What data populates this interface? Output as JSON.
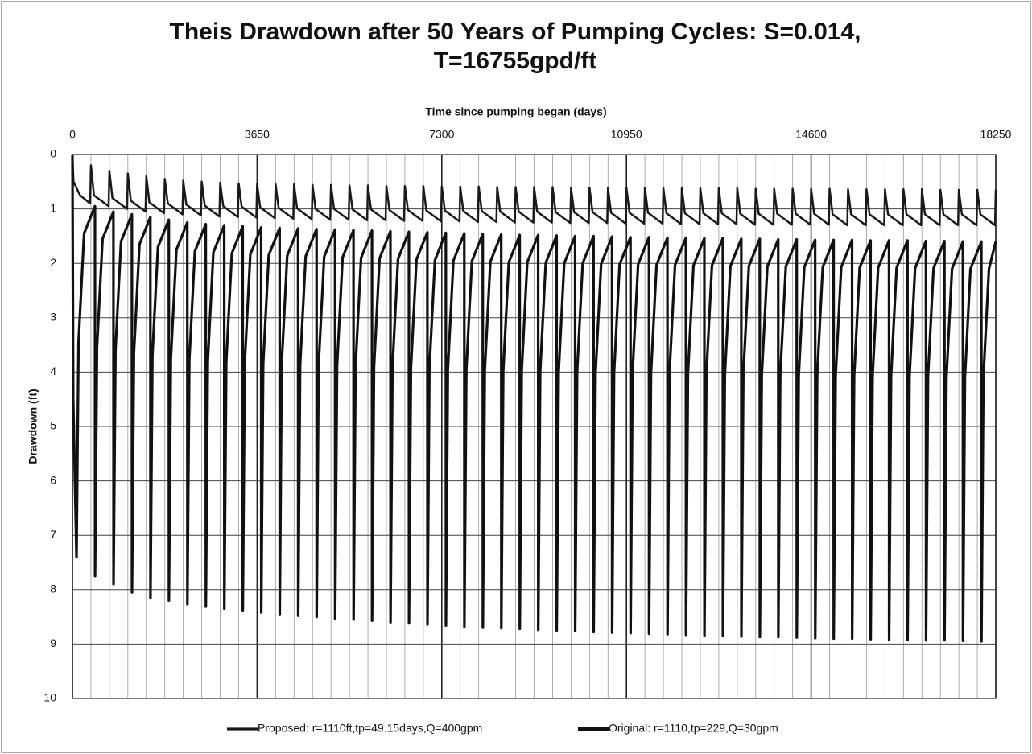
{
  "chart_data": {
    "type": "line",
    "title": "Theis Drawdown after 50 Years of Pumping Cycles: S=0.014, T=16755gpd/ft",
    "x_label": "Time since pumping began (days)",
    "y_label": "Drawdown (ft)",
    "xlim": [
      0,
      18250
    ],
    "xticks": [
      0,
      3650,
      7300,
      10950,
      14600,
      18250
    ],
    "x_minor_grid": 365,
    "x_axis_position": "top",
    "ylim": [
      0,
      10
    ],
    "yticks": [
      0,
      1,
      2,
      3,
      4,
      5,
      6,
      7,
      8,
      9,
      10
    ],
    "y_inverted": true,
    "grid": true,
    "legend": "bottom",
    "series": [
      {
        "name": "Proposed: r=1110ft,tp=49.15days,Q=400gpm",
        "color": "#1a1a1a",
        "width": 2.5,
        "x": [
          0,
          20,
          150,
          350,
          365,
          425,
          715,
          730,
          790,
          1080,
          1095,
          1155,
          1445,
          1460,
          1520,
          1810,
          1825,
          1885,
          2175,
          2190,
          2250,
          2540,
          2555,
          2615,
          2905,
          2920,
          2980,
          3270,
          3285,
          3345,
          3635,
          3650,
          3710,
          4000,
          4015,
          4075,
          4365,
          4380,
          4440,
          4730,
          4745,
          4805,
          5095,
          5110,
          5170,
          5460,
          5475,
          5535,
          5825,
          5840,
          5900,
          6190,
          6205,
          6265,
          6555,
          6570,
          6630,
          6920,
          6935,
          6995,
          7285,
          7300,
          7360,
          7650,
          7665,
          7725,
          8015,
          8030,
          8090,
          8380,
          8395,
          8455,
          8745,
          8760,
          8820,
          9110,
          9125,
          9185,
          9475,
          9490,
          9550,
          9840,
          9855,
          9915,
          10205,
          10220,
          10280,
          10570,
          10585,
          10645,
          10935,
          10950,
          11010,
          11300,
          11315,
          11375,
          11665,
          11680,
          11740,
          12030,
          12045,
          12105,
          12395,
          12410,
          12470,
          12760,
          12775,
          12835,
          13125,
          13140,
          13200,
          13490,
          13505,
          13565,
          13855,
          13870,
          13930,
          14220,
          14235,
          14295,
          14585,
          14600,
          14660,
          14950,
          14965,
          15025,
          15315,
          15330,
          15390,
          15680,
          15695,
          15755,
          16045,
          16060,
          16120,
          16410,
          16425,
          16485,
          16775,
          16790,
          16850,
          17140,
          17155,
          17215,
          17505,
          17520,
          17580,
          17870,
          17885,
          17945,
          18235,
          18250
        ],
        "values": [
          0,
          0.5,
          0.75,
          0.9,
          0.2,
          0.75,
          0.95,
          0.3,
          0.8,
          1.0,
          0.35,
          0.85,
          1.05,
          0.4,
          0.88,
          1.08,
          0.45,
          0.9,
          1.1,
          0.48,
          0.92,
          1.12,
          0.5,
          0.94,
          1.14,
          0.52,
          0.95,
          1.15,
          0.53,
          0.96,
          1.16,
          0.54,
          0.97,
          1.17,
          0.55,
          0.98,
          1.18,
          0.55,
          0.99,
          1.19,
          0.56,
          1.0,
          1.2,
          0.56,
          1.0,
          1.2,
          0.57,
          1.01,
          1.21,
          0.57,
          1.01,
          1.21,
          0.58,
          1.02,
          1.22,
          0.58,
          1.02,
          1.22,
          0.58,
          1.03,
          1.23,
          0.59,
          1.03,
          1.23,
          0.59,
          1.04,
          1.24,
          0.59,
          1.04,
          1.24,
          0.6,
          1.05,
          1.25,
          0.6,
          1.05,
          1.25,
          0.6,
          1.05,
          1.25,
          0.6,
          1.06,
          1.26,
          0.61,
          1.06,
          1.26,
          0.61,
          1.06,
          1.26,
          0.61,
          1.07,
          1.27,
          0.61,
          1.07,
          1.27,
          0.61,
          1.07,
          1.27,
          0.62,
          1.08,
          1.28,
          0.62,
          1.08,
          1.28,
          0.62,
          1.08,
          1.28,
          0.62,
          1.08,
          1.28,
          0.62,
          1.09,
          1.29,
          0.63,
          1.09,
          1.29,
          0.63,
          1.09,
          1.29,
          0.63,
          1.09,
          1.29,
          0.63,
          1.09,
          1.29,
          0.63,
          1.1,
          1.3,
          0.64,
          1.1,
          1.3,
          0.64,
          1.1,
          1.3,
          0.64,
          1.1,
          1.3,
          0.64,
          1.1,
          1.3,
          0.64,
          1.1,
          1.3,
          0.65,
          1.1,
          1.3,
          0.65,
          1.1,
          1.3,
          0.65,
          1.1,
          1.3,
          0.65
        ]
      },
      {
        "name": "Original: r=1110,tp=229,Q=30gpm",
        "color": "#111111",
        "width": 3.2,
        "x": [
          0,
          15,
          80,
          120,
          230,
          445,
          447,
          485,
          595,
          810,
          812,
          850,
          960,
          1175,
          1177,
          1215,
          1325,
          1540,
          1542,
          1580,
          1690,
          1905,
          1907,
          1945,
          2055,
          2270,
          2272,
          2310,
          2420,
          2635,
          2637,
          2675,
          2785,
          3000,
          3002,
          3040,
          3150,
          3365,
          3367,
          3405,
          3515,
          3730,
          3732,
          3770,
          3880,
          4095,
          4097,
          4135,
          4245,
          4460,
          4462,
          4500,
          4610,
          4825,
          4827,
          4865,
          4975,
          5190,
          5192,
          5230,
          5340,
          5555,
          5557,
          5595,
          5705,
          5920,
          5922,
          5960,
          6070,
          6285,
          6287,
          6325,
          6435,
          6650,
          6652,
          6690,
          6800,
          7015,
          7017,
          7055,
          7165,
          7380,
          7382,
          7420,
          7530,
          7745,
          7747,
          7785,
          7895,
          8110,
          8112,
          8150,
          8260,
          8475,
          8477,
          8515,
          8625,
          8840,
          8842,
          8880,
          8990,
          9205,
          9207,
          9245,
          9355,
          9570,
          9572,
          9610,
          9720,
          9935,
          9937,
          9975,
          10085,
          10300,
          10302,
          10340,
          10450,
          10665,
          10667,
          10705,
          10815,
          11030,
          11032,
          11070,
          11180,
          11395,
          11397,
          11435,
          11545,
          11760,
          11762,
          11800,
          11910,
          12125,
          12127,
          12165,
          12275,
          12490,
          12492,
          12530,
          12640,
          12855,
          12857,
          12895,
          13005,
          13220,
          13222,
          13260,
          13370,
          13585,
          13587,
          13625,
          13735,
          13950,
          13952,
          13990,
          14100,
          14315,
          14317,
          14355,
          14465,
          14680,
          14682,
          14720,
          14830,
          15045,
          15047,
          15085,
          15195,
          15410,
          15412,
          15450,
          15560,
          15775,
          15777,
          15815,
          15925,
          16140,
          16142,
          16180,
          16290,
          16505,
          16507,
          16545,
          16655,
          16870,
          16872,
          16910,
          17020,
          17235,
          17237,
          17275,
          17385,
          17600,
          17602,
          17640,
          17750,
          17965,
          17967,
          18005,
          18115,
          18250
        ],
        "values": [
          0,
          4.5,
          7.4,
          3.45,
          1.45,
          0.95,
          7.75,
          3.55,
          1.55,
          1.05,
          7.9,
          3.6,
          1.6,
          1.1,
          8.05,
          3.65,
          1.65,
          1.15,
          8.15,
          3.7,
          1.7,
          1.2,
          8.2,
          3.75,
          1.75,
          1.25,
          8.27,
          3.78,
          1.78,
          1.28,
          8.3,
          3.8,
          1.8,
          1.3,
          8.35,
          3.82,
          1.82,
          1.32,
          8.38,
          3.84,
          1.84,
          1.34,
          8.42,
          3.85,
          1.85,
          1.35,
          8.45,
          3.86,
          1.86,
          1.36,
          8.48,
          3.87,
          1.87,
          1.37,
          8.5,
          3.88,
          1.88,
          1.38,
          8.53,
          3.89,
          1.89,
          1.39,
          8.55,
          3.9,
          1.9,
          1.4,
          8.57,
          3.91,
          1.91,
          1.41,
          8.6,
          3.92,
          1.92,
          1.42,
          8.62,
          3.93,
          1.93,
          1.43,
          8.64,
          3.94,
          1.94,
          1.44,
          8.66,
          3.95,
          1.95,
          1.45,
          8.68,
          3.96,
          1.96,
          1.46,
          8.7,
          3.97,
          1.97,
          1.47,
          8.71,
          3.98,
          1.98,
          1.48,
          8.72,
          3.98,
          1.98,
          1.48,
          8.74,
          3.99,
          1.99,
          1.49,
          8.75,
          4.0,
          2.0,
          1.5,
          8.76,
          4.0,
          2.0,
          1.5,
          8.78,
          4.01,
          2.01,
          1.51,
          8.79,
          4.02,
          2.02,
          1.52,
          8.8,
          4.02,
          2.02,
          1.52,
          8.81,
          4.03,
          2.03,
          1.53,
          8.82,
          4.03,
          2.03,
          1.53,
          8.83,
          4.04,
          2.04,
          1.54,
          8.84,
          4.04,
          2.04,
          1.54,
          8.85,
          4.05,
          2.05,
          1.55,
          8.86,
          4.05,
          2.05,
          1.55,
          8.87,
          4.06,
          2.06,
          1.56,
          8.87,
          4.06,
          2.06,
          1.56,
          8.88,
          4.07,
          2.07,
          1.57,
          8.89,
          4.07,
          2.07,
          1.57,
          8.9,
          4.07,
          2.07,
          1.57,
          8.9,
          4.08,
          2.08,
          1.58,
          8.91,
          4.08,
          2.08,
          1.58,
          8.92,
          4.08,
          2.08,
          1.58,
          8.92,
          4.09,
          2.09,
          1.59,
          8.93,
          4.09,
          2.09,
          1.59,
          8.93,
          4.1,
          2.1,
          1.6,
          8.94,
          4.1,
          2.1,
          1.6,
          8.95,
          4.1,
          2.1,
          1.6
        ]
      }
    ]
  }
}
